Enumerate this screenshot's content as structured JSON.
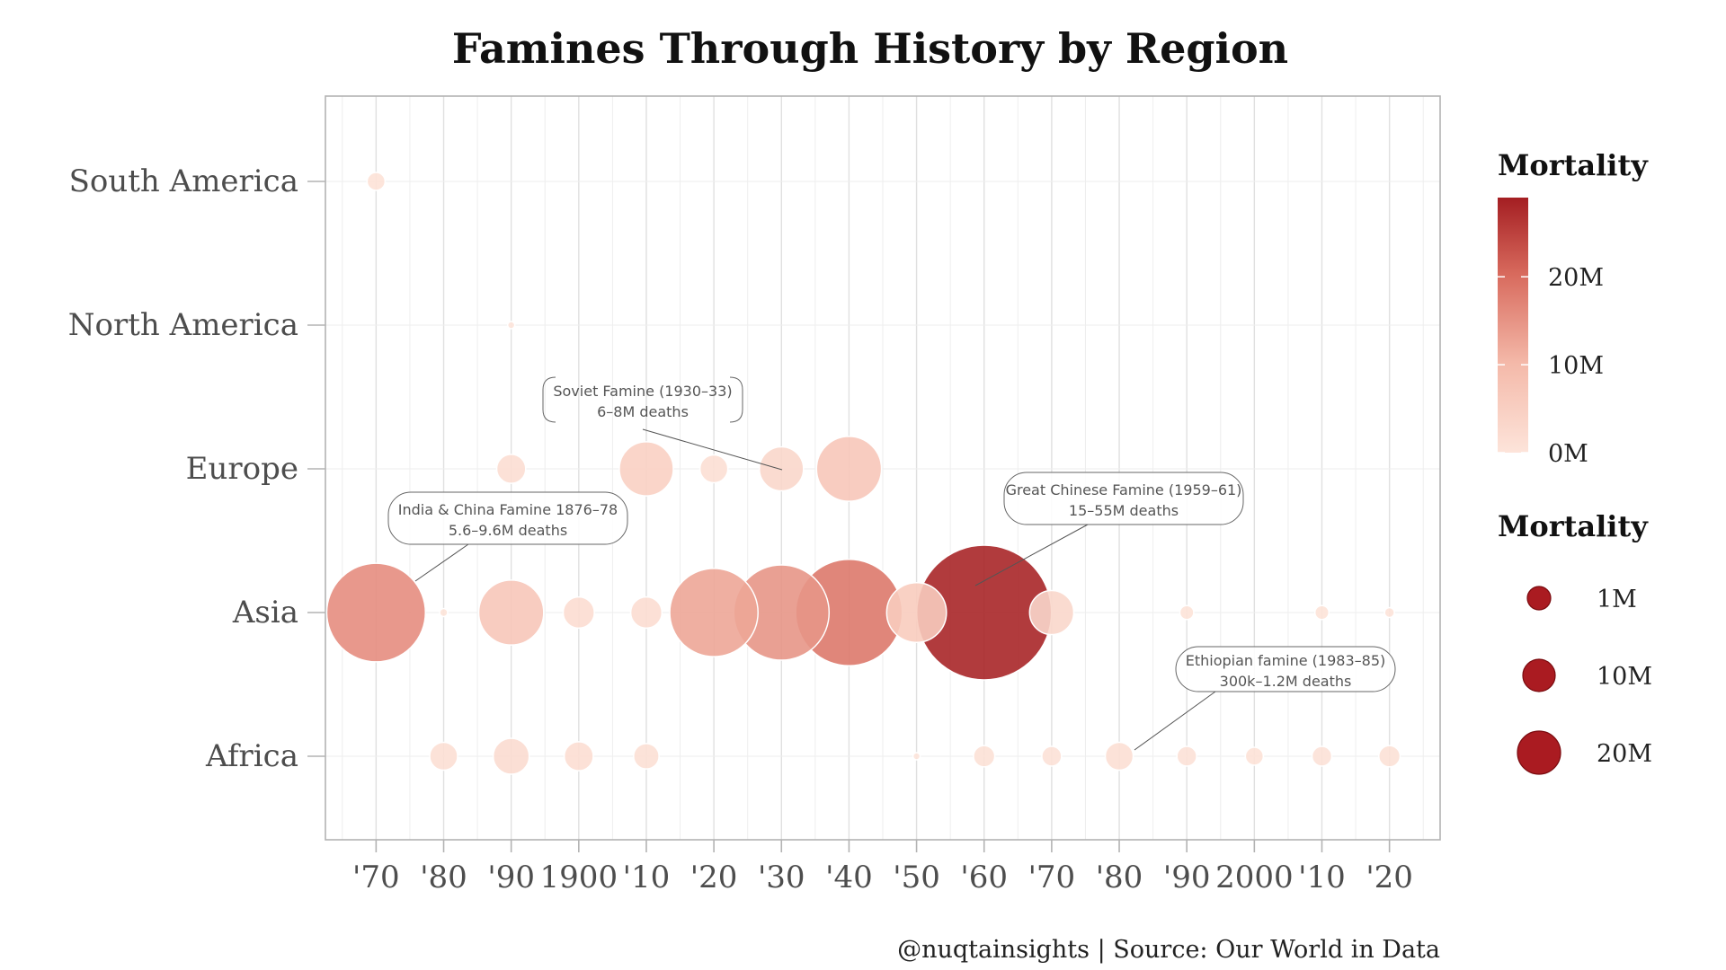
{
  "chart_data": {
    "type": "scatter",
    "title": "Famines Through History by Region",
    "caption": "@nuqtainsights | Source: Our World in Data",
    "categories": [
      "South America",
      "North America",
      "Europe",
      "Asia",
      "Africa"
    ],
    "x_ticks": [
      {
        "year": 1870,
        "label": "'70"
      },
      {
        "year": 1880,
        "label": "'80"
      },
      {
        "year": 1890,
        "label": "'90"
      },
      {
        "year": 1900,
        "label": "1900"
      },
      {
        "year": 1910,
        "label": "'10"
      },
      {
        "year": 1920,
        "label": "'20"
      },
      {
        "year": 1930,
        "label": "'30"
      },
      {
        "year": 1940,
        "label": "'40"
      },
      {
        "year": 1950,
        "label": "'50"
      },
      {
        "year": 1960,
        "label": "'60"
      },
      {
        "year": 1970,
        "label": "'70"
      },
      {
        "year": 1980,
        "label": "'80"
      },
      {
        "year": 1990,
        "label": "'90"
      },
      {
        "year": 2000,
        "label": "2000"
      },
      {
        "year": 2010,
        "label": "'10"
      },
      {
        "year": 2020,
        "label": "'20"
      }
    ],
    "xlim": [
      1862.5,
      2027.5
    ],
    "grid": true,
    "points": [
      {
        "region": "South America",
        "year": 1870,
        "mortality_millions": 0.5
      },
      {
        "region": "North America",
        "year": 1890,
        "mortality_millions": 0.05
      },
      {
        "region": "Europe",
        "year": 1890,
        "mortality_millions": 1.3
      },
      {
        "region": "Europe",
        "year": 1910,
        "mortality_millions": 4.5
      },
      {
        "region": "Europe",
        "year": 1920,
        "mortality_millions": 1.2
      },
      {
        "region": "Europe",
        "year": 1930,
        "mortality_millions": 3.0
      },
      {
        "region": "Europe",
        "year": 1940,
        "mortality_millions": 6.5
      },
      {
        "region": "Asia",
        "year": 1870,
        "mortality_millions": 15.0
      },
      {
        "region": "Asia",
        "year": 1880,
        "mortality_millions": 0.1
      },
      {
        "region": "Asia",
        "year": 1890,
        "mortality_millions": 6.5
      },
      {
        "region": "Asia",
        "year": 1900,
        "mortality_millions": 1.5
      },
      {
        "region": "Asia",
        "year": 1910,
        "mortality_millions": 1.5
      },
      {
        "region": "Asia",
        "year": 1920,
        "mortality_millions": 12.0
      },
      {
        "region": "Asia",
        "year": 1930,
        "mortality_millions": 14.0
      },
      {
        "region": "Asia",
        "year": 1940,
        "mortality_millions": 17.5
      },
      {
        "region": "Asia",
        "year": 1950,
        "mortality_millions": 5.5
      },
      {
        "region": "Asia",
        "year": 1960,
        "mortality_millions": 28.0
      },
      {
        "region": "Asia",
        "year": 1970,
        "mortality_millions": 3.0
      },
      {
        "region": "Asia",
        "year": 1990,
        "mortality_millions": 0.3
      },
      {
        "region": "Asia",
        "year": 2010,
        "mortality_millions": 0.3
      },
      {
        "region": "Asia",
        "year": 2020,
        "mortality_millions": 0.15
      },
      {
        "region": "Africa",
        "year": 1880,
        "mortality_millions": 1.2
      },
      {
        "region": "Africa",
        "year": 1890,
        "mortality_millions": 2.0
      },
      {
        "region": "Africa",
        "year": 1900,
        "mortality_millions": 1.3
      },
      {
        "region": "Africa",
        "year": 1910,
        "mortality_millions": 1.0
      },
      {
        "region": "Africa",
        "year": 1950,
        "mortality_millions": 0.05
      },
      {
        "region": "Africa",
        "year": 1960,
        "mortality_millions": 0.7
      },
      {
        "region": "Africa",
        "year": 1970,
        "mortality_millions": 0.6
      },
      {
        "region": "Africa",
        "year": 1980,
        "mortality_millions": 1.2
      },
      {
        "region": "Africa",
        "year": 1990,
        "mortality_millions": 0.6
      },
      {
        "region": "Africa",
        "year": 2000,
        "mortality_millions": 0.5
      },
      {
        "region": "Africa",
        "year": 2010,
        "mortality_millions": 0.6
      },
      {
        "region": "Africa",
        "year": 2020,
        "mortality_millions": 0.7
      }
    ],
    "annotations": [
      {
        "lines": [
          "Soviet Famine (1930–33)",
          "6–8M deaths"
        ],
        "region": "Europe",
        "year": 1930,
        "style": "bracket"
      },
      {
        "lines": [
          "India & China Famine 1876–78",
          "5.6–9.6M deaths"
        ],
        "region": "Asia",
        "year": 1876,
        "style": "box"
      },
      {
        "lines": [
          "Great Chinese Famine (1959–61)",
          "15–55M deaths"
        ],
        "region": "Asia",
        "year": 1959,
        "style": "box"
      },
      {
        "lines": [
          "Ethiopian famine (1983–85)",
          "300k–1.2M deaths"
        ],
        "region": "Africa",
        "year": 1981,
        "style": "box"
      }
    ],
    "legend_color": {
      "title": "Mortality",
      "ticks": [
        {
          "value": 0,
          "label": "0M"
        },
        {
          "value": 10,
          "label": "10M"
        },
        {
          "value": 20,
          "label": "20M"
        }
      ],
      "range": [
        0,
        29
      ],
      "colors": [
        "#fde4da",
        "#f4b9a9",
        "#d86a5d",
        "#a41e22"
      ],
      "placement": "right"
    },
    "legend_size": {
      "title": "Mortality",
      "entries": [
        {
          "value": 1,
          "label": "1M"
        },
        {
          "value": 10,
          "label": "10M"
        },
        {
          "value": 20,
          "label": "20M"
        }
      ],
      "color": "#a50f15",
      "placement": "right"
    }
  }
}
